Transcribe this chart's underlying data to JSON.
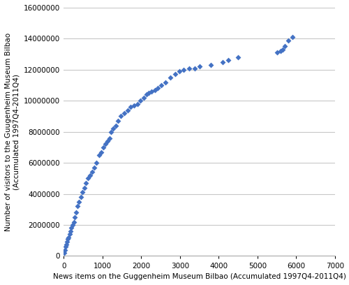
{
  "x": [
    15,
    30,
    50,
    70,
    90,
    110,
    130,
    150,
    170,
    200,
    230,
    260,
    290,
    320,
    360,
    400,
    440,
    480,
    530,
    580,
    630,
    680,
    730,
    790,
    850,
    910,
    970,
    1030,
    1080,
    1130,
    1180,
    1220,
    1280,
    1340,
    1400,
    1480,
    1560,
    1650,
    1730,
    1820,
    1900,
    1980,
    2060,
    2140,
    2200,
    2270,
    2350,
    2430,
    2520,
    2630,
    2750,
    2870,
    2980,
    3100,
    3230,
    3380,
    3500,
    3800,
    4100,
    4250,
    4500,
    5500,
    5600,
    5650,
    5700,
    5800,
    5900
  ],
  "y": [
    200000,
    400000,
    600000,
    750000,
    900000,
    1100000,
    1200000,
    1400000,
    1600000,
    1800000,
    2000000,
    2200000,
    2500000,
    2800000,
    3200000,
    3500000,
    3800000,
    4100000,
    4400000,
    4700000,
    5000000,
    5200000,
    5400000,
    5700000,
    6000000,
    6500000,
    6700000,
    7000000,
    7200000,
    7400000,
    7600000,
    8000000,
    8200000,
    8400000,
    8700000,
    9000000,
    9200000,
    9400000,
    9600000,
    9700000,
    9800000,
    10000000,
    10200000,
    10400000,
    10500000,
    10600000,
    10700000,
    10800000,
    11000000,
    11200000,
    11500000,
    11700000,
    11900000,
    12000000,
    12100000,
    12100000,
    12200000,
    12300000,
    12500000,
    12600000,
    12800000,
    13100000,
    13200000,
    13300000,
    13500000,
    13900000,
    14100000
  ],
  "xlabel": "News items on the Guggenheim Museum Bilbao (Accumulated 1997Q4-2011Q4)",
  "ylabel": "Number of visitors to the Guugenheim Museum Bilbao\n(Accumulated 1997Q4-2011Q4)",
  "xlim": [
    0,
    7000
  ],
  "ylim": [
    0,
    16000000
  ],
  "xticks": [
    0,
    1000,
    2000,
    3000,
    4000,
    5000,
    6000,
    7000
  ],
  "yticks": [
    0,
    2000000,
    4000000,
    6000000,
    8000000,
    10000000,
    12000000,
    14000000,
    16000000
  ],
  "ytick_labels": [
    "0",
    "2000000",
    "4000000",
    "6000000",
    "8000000",
    "10000000",
    "12000000",
    "14000000",
    "16000000"
  ],
  "xtick_labels": [
    "0",
    "1000",
    "2000",
    "3000",
    "4000",
    "5000",
    "6000",
    "7000"
  ],
  "marker_color": "#4472C4",
  "marker": "D",
  "marker_size": 4,
  "bg_color": "#ffffff",
  "grid_color": "#c8c8c8",
  "spine_color": "#aaaaaa"
}
